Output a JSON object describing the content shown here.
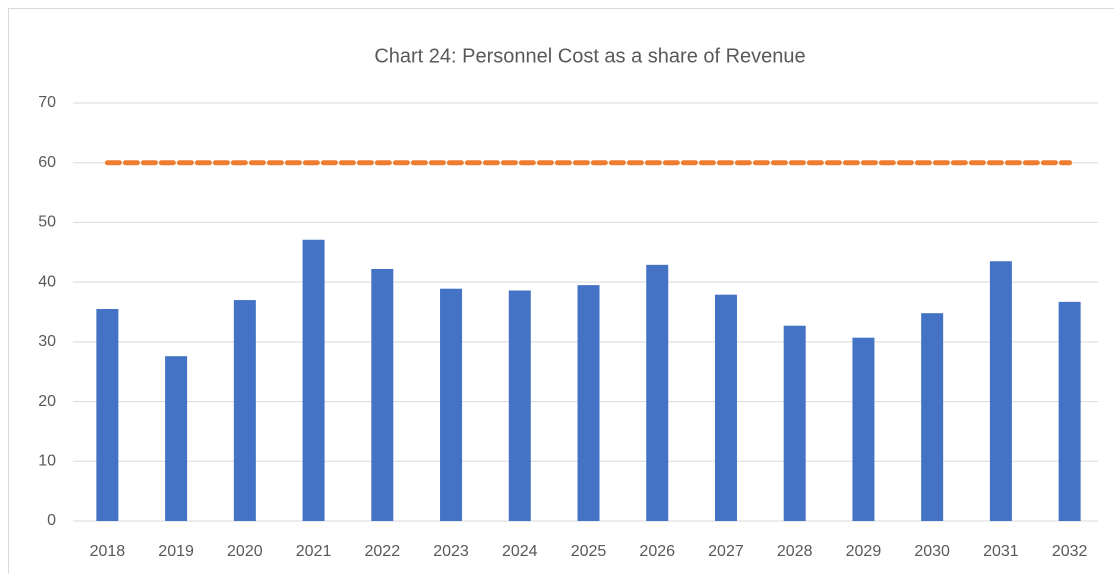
{
  "chart_data": {
    "type": "bar",
    "title": "Chart 24: Personnel Cost as a share of Revenue",
    "categories": [
      "2018",
      "2019",
      "2020",
      "2021",
      "2022",
      "2023",
      "2024",
      "2025",
      "2026",
      "2027",
      "2028",
      "2029",
      "2030",
      "2031",
      "2032"
    ],
    "series": [
      {
        "type": "bar",
        "color": "#4472c4",
        "values": [
          35.5,
          27.6,
          37.0,
          47.1,
          42.2,
          38.9,
          38.6,
          39.5,
          42.9,
          37.9,
          32.7,
          30.7,
          34.8,
          43.5,
          36.7
        ]
      },
      {
        "type": "line",
        "color": "#ed7d31",
        "dashed": true,
        "values": [
          60,
          60,
          60,
          60,
          60,
          60,
          60,
          60,
          60,
          60,
          60,
          60,
          60,
          60,
          60
        ]
      }
    ],
    "ylim": [
      0,
      70
    ],
    "yticks": [
      0,
      10,
      20,
      30,
      40,
      50,
      60,
      70
    ],
    "grid": true
  }
}
